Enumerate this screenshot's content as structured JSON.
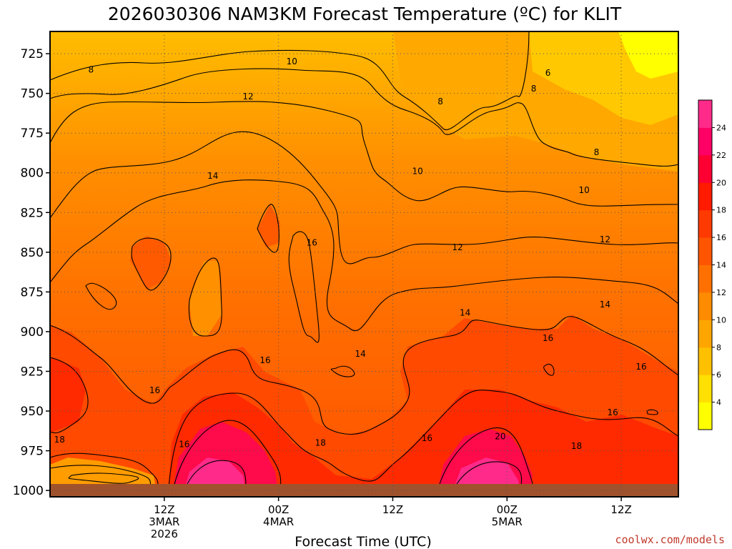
{
  "chart_data": {
    "type": "heatmap",
    "title": "2026030306 NAM3KM Forecast Temperature (ºC) for KLIT",
    "xlabel": "Forecast Time (UTC)",
    "ylabel": "",
    "y_reversed": true,
    "grid": true,
    "legend_position": "right",
    "credit": "coolwx.com/models",
    "y_ticks": [
      "725",
      "750",
      "775",
      "800",
      "825",
      "850",
      "875",
      "900",
      "925",
      "950",
      "975",
      "1000"
    ],
    "x_ticks": [
      {
        "hour": 12,
        "lines": [
          "12Z",
          "3MAR",
          "2026"
        ]
      },
      {
        "hour": 24,
        "lines": [
          "00Z",
          "4MAR"
        ]
      },
      {
        "hour": 36,
        "lines": [
          "12Z"
        ]
      },
      {
        "hour": 48,
        "lines": [
          "00Z",
          "5MAR"
        ]
      },
      {
        "hour": 60,
        "lines": [
          "12Z"
        ]
      }
    ],
    "colorbar": {
      "ticks": [
        "4",
        "6",
        "8",
        "10",
        "12",
        "14",
        "16",
        "18",
        "20",
        "22",
        "24"
      ],
      "colors": [
        "#ffff00",
        "#ffe000",
        "#ffc000",
        "#ffa500",
        "#ff8c00",
        "#ff7000",
        "#ff5500",
        "#ff3a00",
        "#ff1a00",
        "#ff0033",
        "#ff0066",
        "#ff2a8a"
      ]
    },
    "contour_labels": [
      {
        "value": "8",
        "hour": 4.3,
        "p": 735
      },
      {
        "value": "10",
        "hour": 25.4,
        "p": 730
      },
      {
        "value": "12",
        "hour": 20.8,
        "p": 752
      },
      {
        "value": "14",
        "hour": 17.1,
        "p": 802
      },
      {
        "value": "16",
        "hour": 27.5,
        "p": 844
      },
      {
        "value": "6",
        "hour": 52.3,
        "p": 737
      },
      {
        "value": "8",
        "hour": 50.8,
        "p": 747
      },
      {
        "value": "8",
        "hour": 41.0,
        "p": 755
      },
      {
        "value": "8",
        "hour": 57.4,
        "p": 787
      },
      {
        "value": "10",
        "hour": 38.6,
        "p": 799
      },
      {
        "value": "10",
        "hour": 56.1,
        "p": 811
      },
      {
        "value": "12",
        "hour": 42.8,
        "p": 847
      },
      {
        "value": "12",
        "hour": 58.3,
        "p": 842
      },
      {
        "value": "14",
        "hour": 43.6,
        "p": 888
      },
      {
        "value": "14",
        "hour": 58.3,
        "p": 883
      },
      {
        "value": "14",
        "hour": 32.6,
        "p": 914
      },
      {
        "value": "16",
        "hour": 22.6,
        "p": 918
      },
      {
        "value": "16",
        "hour": 52.3,
        "p": 904
      },
      {
        "value": "16",
        "hour": 62.1,
        "p": 922
      },
      {
        "value": "16",
        "hour": 59.1,
        "p": 951
      },
      {
        "value": "16",
        "hour": 39.6,
        "p": 967
      },
      {
        "value": "16",
        "hour": 11.0,
        "p": 937
      },
      {
        "value": "16",
        "hour": 14.1,
        "p": 971
      },
      {
        "value": "18",
        "hour": 1.0,
        "p": 968
      },
      {
        "value": "18",
        "hour": 28.4,
        "p": 970
      },
      {
        "value": "18",
        "hour": 55.3,
        "p": 972
      },
      {
        "value": "20",
        "hour": 47.3,
        "p": 966
      }
    ]
  }
}
